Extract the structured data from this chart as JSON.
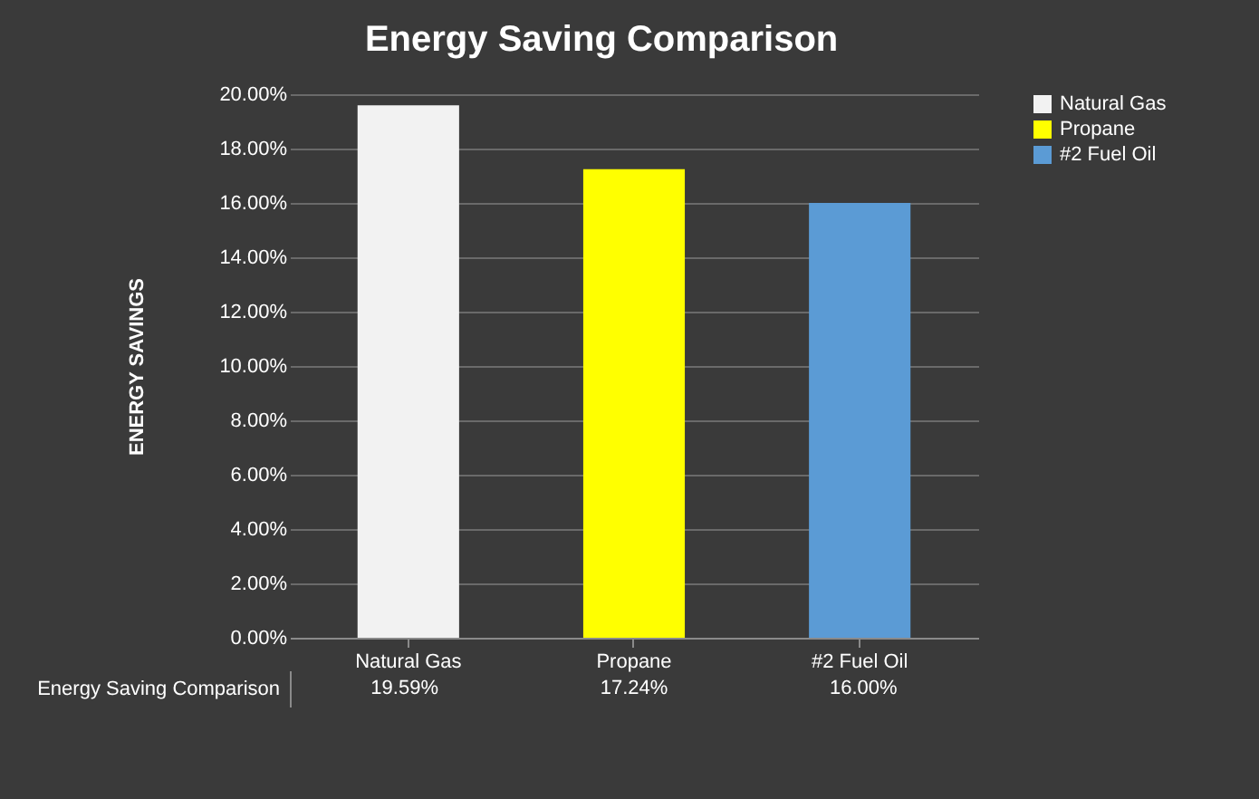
{
  "chart_data": {
    "type": "bar",
    "title": "Energy Saving Comparison",
    "ylabel": "ENERGY SAVINGS",
    "categories": [
      "Natural Gas",
      "Propane",
      "#2 Fuel Oil"
    ],
    "series": [
      {
        "name": "Natural Gas",
        "color": "#f2f2f2",
        "values": [
          19.59,
          null,
          null
        ],
        "value_labels": [
          "19.59%",
          null,
          null
        ]
      },
      {
        "name": "Propane",
        "color": "#ffff00",
        "values": [
          null,
          17.24,
          null
        ],
        "value_labels": [
          null,
          "17.24%",
          null
        ]
      },
      {
        "name": "#2 Fuel Oil",
        "color": "#5b9bd5",
        "values": [
          null,
          null,
          16.0
        ],
        "value_labels": [
          null,
          null,
          "16.00%"
        ]
      }
    ],
    "stacked": true,
    "annotations": [
      "Energy Saving Comparison"
    ],
    "ylim": [
      0,
      20
    ],
    "yticks": [
      {
        "value": 0,
        "label": "0.00%"
      },
      {
        "value": 2,
        "label": "2.00%"
      },
      {
        "value": 4,
        "label": "4.00%"
      },
      {
        "value": 6,
        "label": "6.00%"
      },
      {
        "value": 8,
        "label": "8.00%"
      },
      {
        "value": 10,
        "label": "10.00%"
      },
      {
        "value": 12,
        "label": "12.00%"
      },
      {
        "value": 14,
        "label": "14.00%"
      },
      {
        "value": 16,
        "label": "16.00%"
      },
      {
        "value": 18,
        "label": "18.00%"
      },
      {
        "value": 20,
        "label": "20.00%"
      }
    ],
    "grid": "y",
    "legend": "right"
  }
}
